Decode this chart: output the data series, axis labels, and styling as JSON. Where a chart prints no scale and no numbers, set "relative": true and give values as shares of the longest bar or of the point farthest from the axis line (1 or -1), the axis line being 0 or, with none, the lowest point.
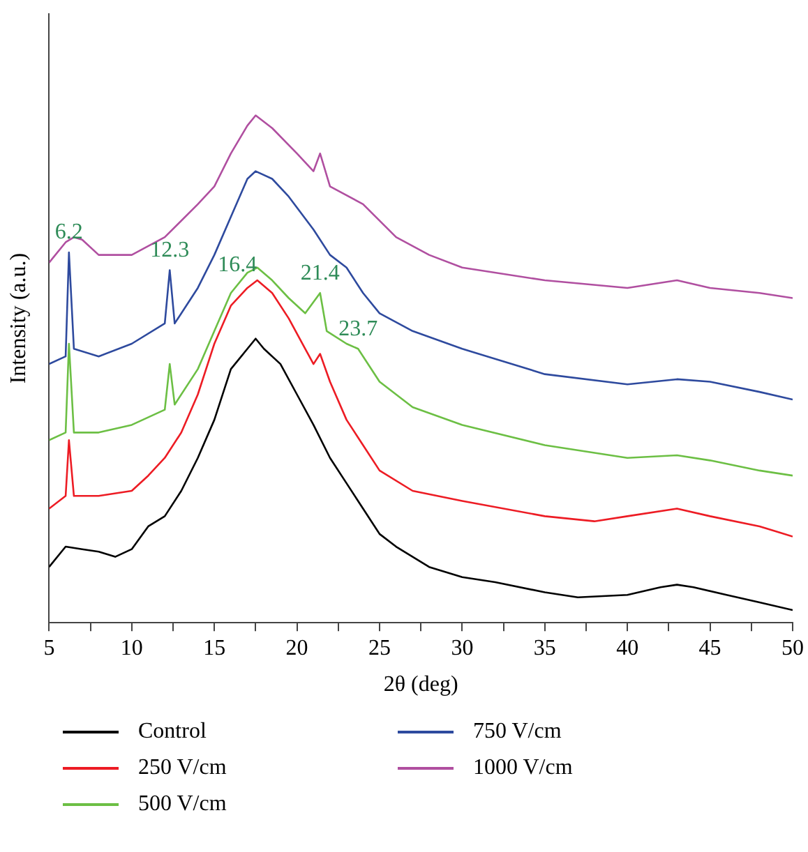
{
  "chart_data": {
    "type": "line",
    "xlabel": "2θ (deg)",
    "ylabel": "Intensity (a.u.)",
    "relative": true,
    "legend": "bottom",
    "grid": false,
    "marker": "none",
    "line_style": "solid",
    "xlim": [
      5,
      50
    ],
    "xticks": [
      5,
      {
        "value": 7.5,
        "label": null
      },
      10,
      {
        "value": 12.5,
        "label": null
      },
      15,
      {
        "value": 17.5,
        "label": null
      },
      20,
      {
        "value": 22.5,
        "label": null
      },
      25,
      {
        "value": 27.5,
        "label": null
      },
      30,
      {
        "value": 32.5,
        "label": null
      },
      35,
      {
        "value": 37.5,
        "label": null
      },
      40,
      {
        "value": 42.5,
        "label": null
      },
      45,
      {
        "value": 47.5,
        "label": null
      },
      50
    ],
    "annotations": [
      {
        "text": "6.2",
        "x": 6.2,
        "y": 0.73
      },
      {
        "text": "12.3",
        "x": 12.3,
        "y": 0.695
      },
      {
        "text": "16.4",
        "x": 16.4,
        "y": 0.666
      },
      {
        "text": "21.4",
        "x": 21.4,
        "y": 0.65
      },
      {
        "text": "23.7",
        "x": 23.7,
        "y": 0.54
      }
    ],
    "series": [
      {
        "name": "Control",
        "color": "#000000",
        "x": [
          5,
          6,
          7,
          8,
          9,
          10,
          11,
          12,
          13,
          14,
          15,
          16,
          17,
          17.5,
          18,
          19,
          20,
          21,
          22,
          23,
          24,
          25,
          26,
          28,
          30,
          32,
          35,
          37,
          40,
          42,
          43,
          44,
          46,
          48,
          50
        ],
        "values": [
          0.11,
          0.15,
          0.145,
          0.14,
          0.13,
          0.145,
          0.19,
          0.21,
          0.26,
          0.325,
          0.4,
          0.5,
          0.54,
          0.56,
          0.54,
          0.51,
          0.45,
          0.39,
          0.325,
          0.275,
          0.225,
          0.175,
          0.15,
          0.11,
          0.09,
          0.08,
          0.06,
          0.05,
          0.055,
          0.07,
          0.075,
          0.07,
          0.055,
          0.04,
          0.025
        ]
      },
      {
        "name": "250 V/cm",
        "color": "#ed1c24",
        "x": [
          5,
          6,
          6.2,
          6.5,
          8,
          10,
          11,
          12,
          13,
          14,
          15,
          16,
          17,
          17.6,
          18.5,
          19.5,
          20.5,
          21,
          21.4,
          22,
          23,
          24,
          25,
          27,
          30,
          35,
          38,
          40,
          43,
          45,
          48,
          50
        ],
        "values": [
          0.225,
          0.25,
          0.36,
          0.25,
          0.25,
          0.26,
          0.29,
          0.325,
          0.375,
          0.45,
          0.55,
          0.625,
          0.66,
          0.675,
          0.65,
          0.6,
          0.54,
          0.51,
          0.53,
          0.475,
          0.4,
          0.35,
          0.3,
          0.26,
          0.24,
          0.21,
          0.2,
          0.21,
          0.225,
          0.21,
          0.19,
          0.17
        ]
      },
      {
        "name": "500 V/cm",
        "color": "#6cbf44",
        "x": [
          5,
          6,
          6.2,
          6.5,
          8,
          10,
          12,
          12.3,
          12.6,
          14,
          15,
          16,
          17,
          17.6,
          18.5,
          19.5,
          20.5,
          21.4,
          21.8,
          23,
          23.7,
          25,
          27,
          30,
          35,
          40,
          43,
          45,
          48,
          50
        ],
        "values": [
          0.36,
          0.375,
          0.55,
          0.375,
          0.375,
          0.39,
          0.42,
          0.51,
          0.43,
          0.5,
          0.575,
          0.65,
          0.69,
          0.7,
          0.675,
          0.64,
          0.61,
          0.65,
          0.575,
          0.55,
          0.54,
          0.475,
          0.425,
          0.39,
          0.35,
          0.325,
          0.33,
          0.32,
          0.3,
          0.29
        ]
      },
      {
        "name": "750 V/cm",
        "color": "#2e4a9e",
        "x": [
          5,
          6,
          6.2,
          6.5,
          8,
          10,
          12,
          12.3,
          12.6,
          14,
          15,
          16,
          17,
          17.5,
          18.5,
          19.5,
          21,
          22,
          23,
          24,
          25,
          27,
          30,
          35,
          40,
          43,
          45,
          48,
          50
        ],
        "values": [
          0.51,
          0.525,
          0.73,
          0.54,
          0.525,
          0.55,
          0.59,
          0.695,
          0.59,
          0.66,
          0.725,
          0.8,
          0.875,
          0.89,
          0.875,
          0.84,
          0.775,
          0.725,
          0.7,
          0.65,
          0.61,
          0.575,
          0.54,
          0.49,
          0.47,
          0.48,
          0.475,
          0.455,
          0.44
        ]
      },
      {
        "name": "1000 V/cm",
        "color": "#b04fa0",
        "x": [
          5,
          6,
          6.5,
          7,
          8,
          10,
          12,
          14,
          15,
          16,
          17,
          17.5,
          18.5,
          20,
          21,
          21.4,
          22,
          24,
          26,
          28,
          30,
          35,
          40,
          43,
          45,
          48,
          50
        ],
        "values": [
          0.71,
          0.75,
          0.76,
          0.755,
          0.725,
          0.725,
          0.76,
          0.825,
          0.86,
          0.925,
          0.98,
          1,
          0.975,
          0.925,
          0.89,
          0.925,
          0.86,
          0.825,
          0.76,
          0.725,
          0.7,
          0.675,
          0.66,
          0.675,
          0.66,
          0.65,
          0.64
        ]
      }
    ]
  }
}
